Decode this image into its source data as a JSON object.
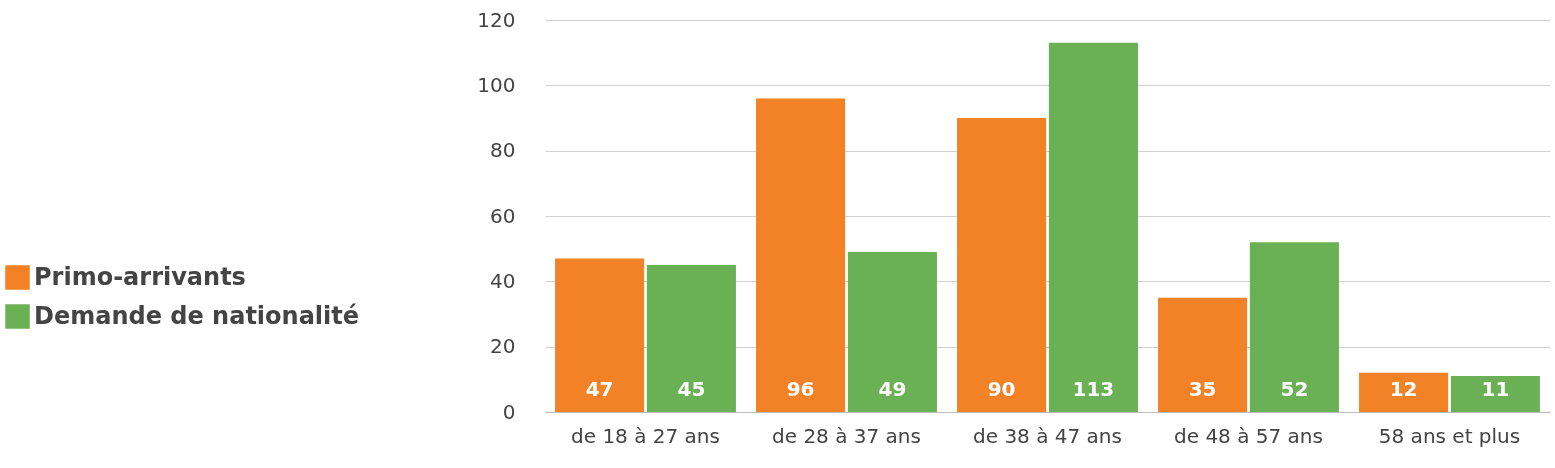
{
  "chart_data": {
    "type": "bar",
    "categories": [
      "de 18 à 27 ans",
      "de 28 à 37 ans",
      "de 38 à 47 ans",
      "de 48 à 57 ans",
      "58 ans et plus"
    ],
    "series": [
      {
        "name": "Primo-arrivants",
        "color": "#f28225",
        "values": [
          47,
          96,
          90,
          35,
          12
        ]
      },
      {
        "name": "Demande de nationalité",
        "color": "#6ab155",
        "values": [
          45,
          49,
          113,
          52,
          11
        ]
      }
    ],
    "ylim": [
      0,
      120
    ],
    "yticks": [
      0,
      20,
      40,
      60,
      80,
      100,
      120
    ],
    "grid": "y",
    "legend": "left",
    "data_labels": true
  }
}
